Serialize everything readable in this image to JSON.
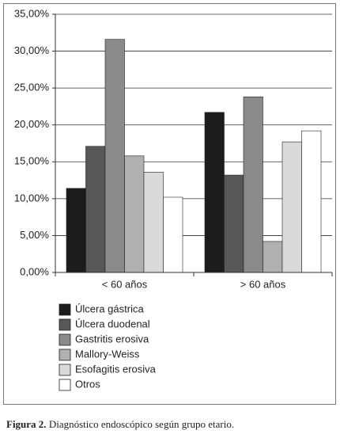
{
  "chart_data": {
    "type": "bar",
    "categories": [
      "< 60 años",
      "> 60 años"
    ],
    "series": [
      {
        "name": "Úlcera gástrica",
        "color": "#1c1c1c",
        "values": [
          11.4,
          21.7
        ]
      },
      {
        "name": "Úlcera duodenal",
        "color": "#575757",
        "values": [
          17.1,
          13.2
        ]
      },
      {
        "name": "Gastritis erosiva",
        "color": "#8a8a8a",
        "values": [
          31.6,
          23.8
        ]
      },
      {
        "name": "Mallory-Weiss",
        "color": "#b0b0b0",
        "values": [
          15.8,
          4.2
        ]
      },
      {
        "name": "Esofagitis erosiva",
        "color": "#dadada",
        "values": [
          13.6,
          17.7
        ]
      },
      {
        "name": "Otros",
        "color": "#ffffff",
        "values": [
          10.2,
          19.2
        ]
      }
    ],
    "ylim": [
      0,
      35
    ],
    "yticks": [
      {
        "value": 0,
        "label": "0,00%"
      },
      {
        "value": 5,
        "label": "5,00%"
      },
      {
        "value": 10,
        "label": "10,00%"
      },
      {
        "value": 15,
        "label": "15,00%"
      },
      {
        "value": 20,
        "label": "20,00%"
      },
      {
        "value": 25,
        "label": "25,00%"
      },
      {
        "value": 30,
        "label": "30,00%"
      },
      {
        "value": 35,
        "label": "35,00%"
      }
    ],
    "grid": true,
    "legend": "bottom",
    "caption_label": "Figura 2.",
    "caption": "Diagnóstico endoscópico según grupo etario."
  }
}
